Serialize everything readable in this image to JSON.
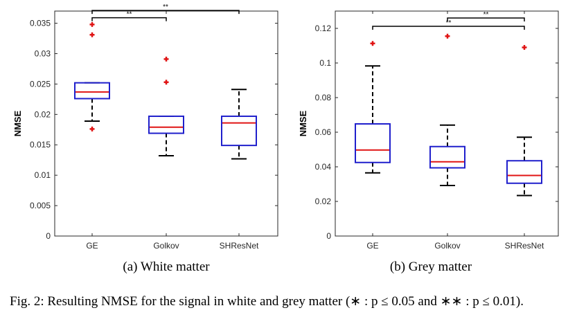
{
  "chart_data": [
    {
      "type": "box",
      "subcaption": "(a) White matter",
      "xlabel": "",
      "ylabel": "NMSE",
      "ylim": [
        0,
        0.037
      ],
      "yticks": [
        "0",
        "0.005",
        "0.01",
        "0.015",
        "0.02",
        "0.025",
        "0.03",
        "0.035"
      ],
      "categories": [
        "GE",
        "Golkov",
        "SHResNet"
      ],
      "boxes": [
        {
          "whisker_low": 0.0189,
          "q1": 0.0226,
          "median": 0.0237,
          "q3": 0.0252,
          "whisker_high": 0.0252,
          "outliers": [
            0.0348,
            0.0331,
            0.0176
          ]
        },
        {
          "whisker_low": 0.0132,
          "q1": 0.0169,
          "median": 0.0179,
          "q3": 0.0197,
          "whisker_high": 0.0197,
          "outliers": [
            0.0291,
            0.0253
          ]
        },
        {
          "whisker_low": 0.0127,
          "q1": 0.0149,
          "median": 0.0186,
          "q3": 0.0197,
          "whisker_high": 0.0241,
          "outliers": []
        }
      ],
      "significance": [
        {
          "from": 0,
          "to": 1,
          "y": 0.0359,
          "label": "**"
        },
        {
          "from": 0,
          "to": 2,
          "y": 0.0371,
          "label": "**"
        }
      ]
    },
    {
      "type": "box",
      "subcaption": "(b) Grey matter",
      "xlabel": "",
      "ylabel": "NMSE",
      "ylim": [
        0,
        0.13
      ],
      "yticks": [
        "0",
        "0.02",
        "0.04",
        "0.06",
        "0.08",
        "0.1",
        "0.12"
      ],
      "categories": [
        "GE",
        "Golkov",
        "SHResNet"
      ],
      "boxes": [
        {
          "whisker_low": 0.0365,
          "q1": 0.0425,
          "median": 0.0497,
          "q3": 0.0648,
          "whisker_high": 0.0983,
          "outliers": [
            0.1113
          ]
        },
        {
          "whisker_low": 0.0292,
          "q1": 0.0394,
          "median": 0.0429,
          "q3": 0.0517,
          "whisker_high": 0.0641,
          "outliers": [
            0.1155
          ]
        },
        {
          "whisker_low": 0.0234,
          "q1": 0.0305,
          "median": 0.035,
          "q3": 0.0435,
          "whisker_high": 0.0571,
          "outliers": [
            0.109
          ]
        }
      ],
      "significance": [
        {
          "from": 1,
          "to": 2,
          "y": 0.126,
          "label": "**"
        },
        {
          "from": 0,
          "to": 2,
          "y": 0.1212,
          "label": "**"
        }
      ]
    }
  ],
  "caption": "Fig. 2: Resulting NMSE for the signal in white and grey matter (∗ : p ≤ 0.05 and ∗∗ : p ≤ 0.01).",
  "colors": {
    "box": "#1f1fcc",
    "median": "#e01414",
    "outlier": "#e01414",
    "whisker": "#000000",
    "axis": "#262626"
  }
}
